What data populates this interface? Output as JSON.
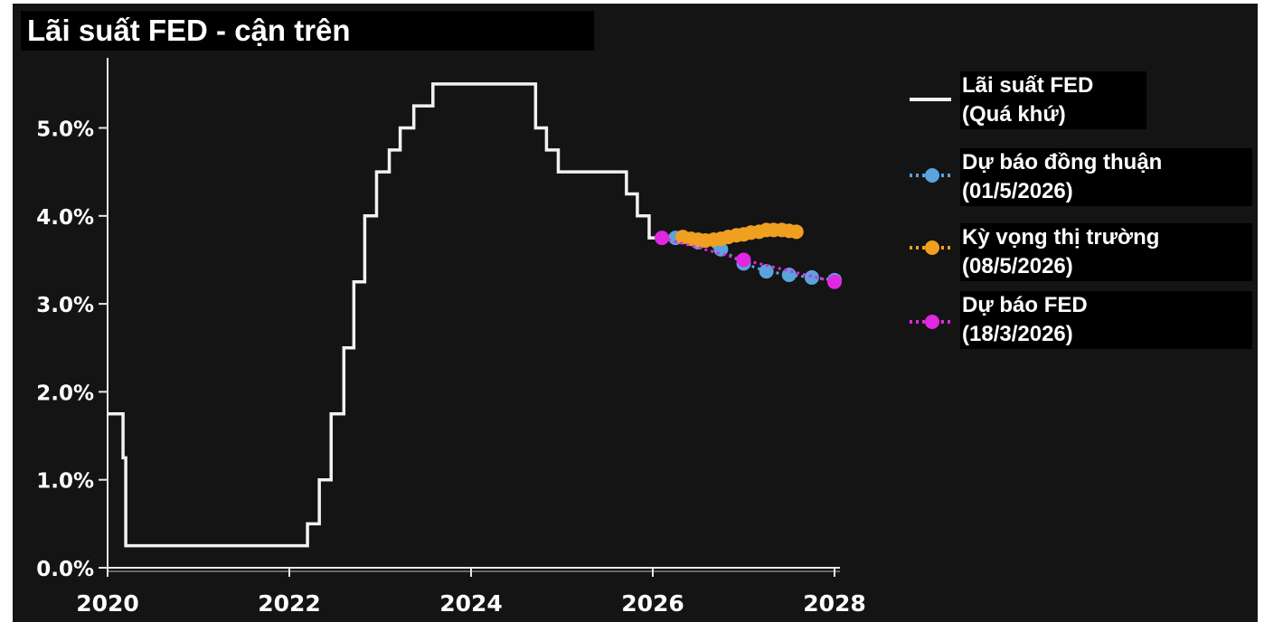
{
  "chart_data": {
    "type": "line",
    "title": "Lãi suất FED - cận trên",
    "xlabel": "",
    "ylabel": "",
    "xlim": [
      2020,
      2028
    ],
    "ylim": [
      0,
      5.5
    ],
    "y_ticks": [
      0,
      1,
      2,
      3,
      4,
      5
    ],
    "y_tick_labels": [
      "0.0%",
      "1.0%",
      "2.0%",
      "3.0%",
      "4.0%",
      "5.0%"
    ],
    "x_ticks": [
      2020,
      2022,
      2024,
      2026,
      2028
    ],
    "x_tick_labels": [
      "2020",
      "2022",
      "2024",
      "2026",
      "2028"
    ],
    "grid": false,
    "legend_position": "right",
    "series": [
      {
        "name": "Lãi suất FED\n(Quá khứ)",
        "style": "step",
        "color": "#f2f2f2",
        "x": [
          2020.0,
          2020.17,
          2020.2,
          2022.2,
          2022.33,
          2022.46,
          2022.6,
          2022.71,
          2022.83,
          2022.96,
          2023.1,
          2023.22,
          2023.37,
          2023.58,
          2024.71,
          2024.83,
          2024.96,
          2025.71,
          2025.83,
          2025.96,
          2026.2
        ],
        "values": [
          1.75,
          1.25,
          0.25,
          0.5,
          1.0,
          1.75,
          2.5,
          3.25,
          4.0,
          4.5,
          4.75,
          5.0,
          5.25,
          5.5,
          5.0,
          4.75,
          4.5,
          4.25,
          4.0,
          3.75,
          3.75
        ]
      },
      {
        "name": "Dự báo đồng thuận\n(01/5/2026)",
        "style": "dotted-markers",
        "color": "#5ba3dd",
        "x": [
          2026.25,
          2026.5,
          2026.75,
          2027.0,
          2027.25,
          2027.5,
          2027.75,
          2028.0
        ],
        "values": [
          3.75,
          3.7,
          3.62,
          3.46,
          3.37,
          3.33,
          3.3,
          3.27
        ]
      },
      {
        "name": "Kỳ vọng thị trường\n(08/5/2026)",
        "style": "dotted-markers",
        "color": "#f0a020",
        "x": [
          2026.33,
          2026.42,
          2026.5,
          2026.58,
          2026.67,
          2026.75,
          2026.83,
          2026.92,
          2027.0,
          2027.08,
          2027.17,
          2027.25,
          2027.33,
          2027.42,
          2027.5,
          2027.58
        ],
        "values": [
          3.76,
          3.74,
          3.73,
          3.72,
          3.73,
          3.74,
          3.76,
          3.78,
          3.79,
          3.81,
          3.82,
          3.84,
          3.84,
          3.84,
          3.83,
          3.82
        ]
      },
      {
        "name": "Dự báo FED\n(18/3/2026)",
        "style": "dotted-markers",
        "color": "#e028e0",
        "x": [
          2026.1,
          2027.0,
          2028.0
        ],
        "values": [
          3.75,
          3.5,
          3.25
        ]
      }
    ]
  }
}
